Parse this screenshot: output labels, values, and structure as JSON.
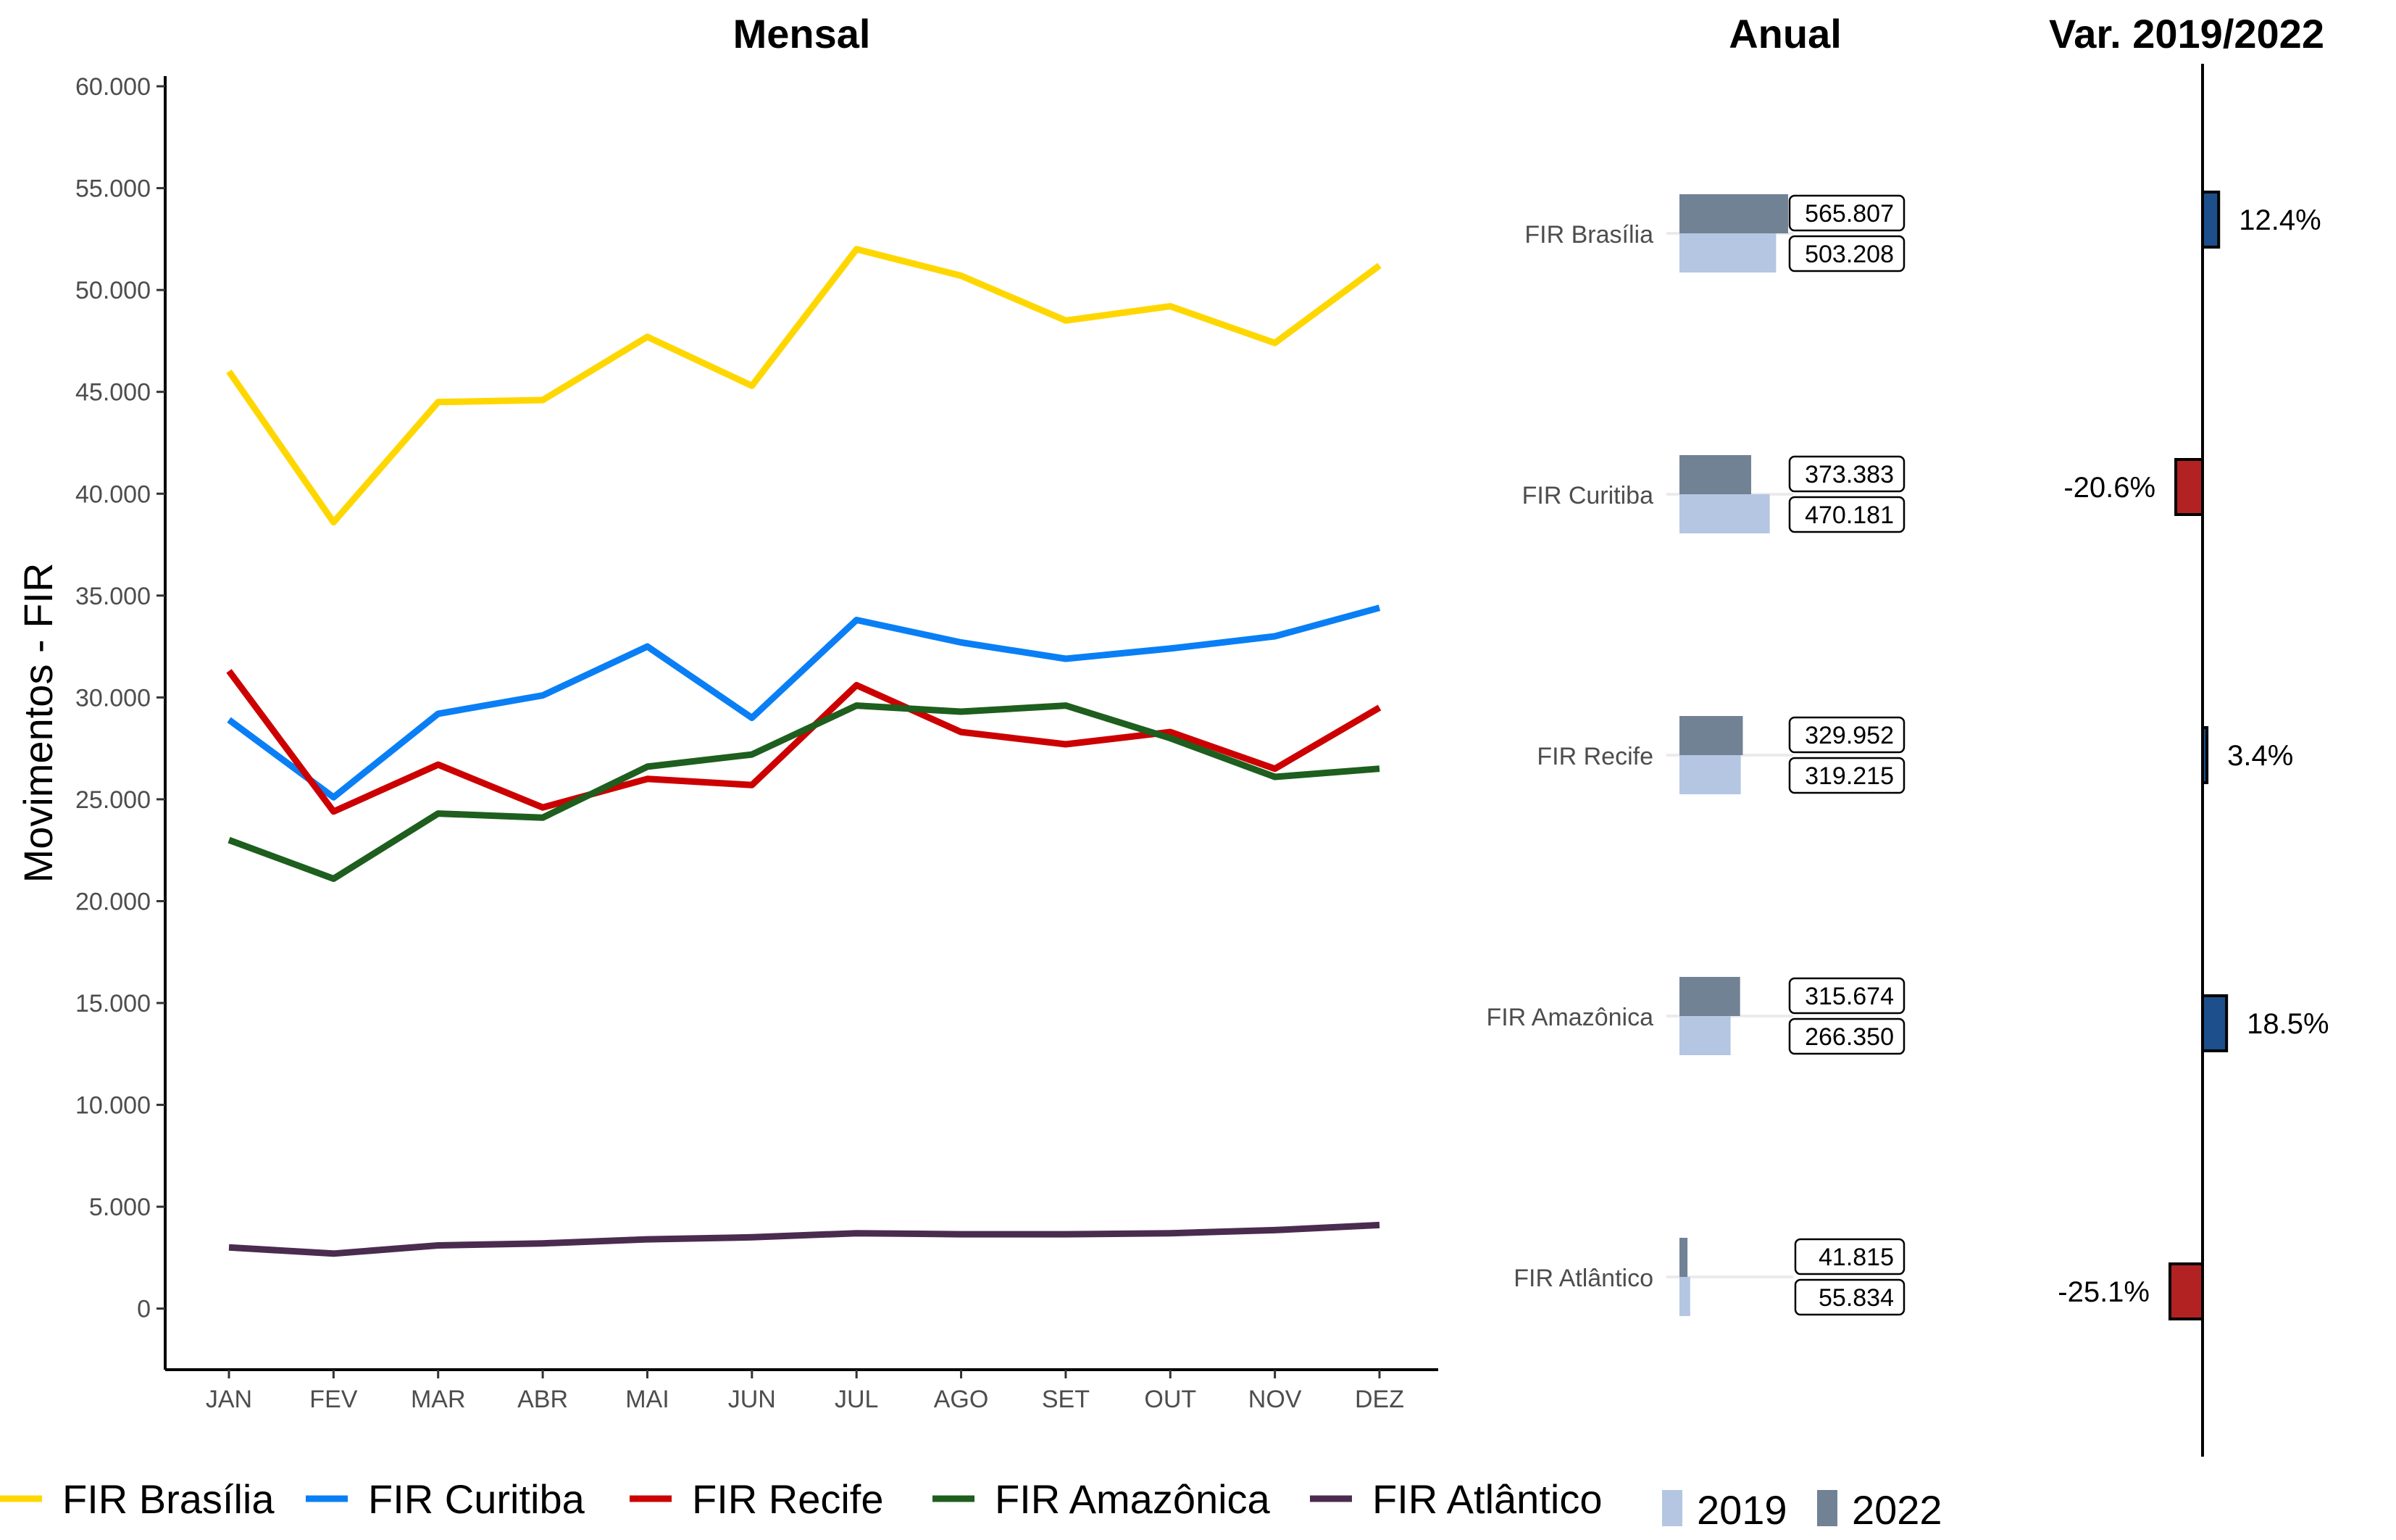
{
  "colors": {
    "FIR Brasília": "#FFD700",
    "FIR Curitiba": "#0A7FF5",
    "FIR Recife": "#CC0000",
    "FIR Amazônica": "#1E5E1E",
    "FIR Atlântico": "#4A2C4F",
    "bar_2019": "#B4C6E2",
    "bar_2022": "#718295",
    "positive_var": "#1C4F8C",
    "negative_var": "#B22222"
  },
  "chart_data": [
    {
      "type": "line",
      "title": "Mensal",
      "ylabel": "Movimentos - FIR",
      "xlabel": "",
      "categories": [
        "JAN",
        "FEV",
        "MAR",
        "ABR",
        "MAI",
        "JUN",
        "JUL",
        "AGO",
        "SET",
        "OUT",
        "NOV",
        "DEZ"
      ],
      "ylim": [
        -3000,
        60500
      ],
      "yticks": [
        0,
        5000,
        10000,
        15000,
        20000,
        25000,
        30000,
        35000,
        40000,
        45000,
        50000,
        55000,
        60000
      ],
      "ytick_labels": [
        "0",
        "5.000",
        "10.000",
        "15.000",
        "20.000",
        "25.000",
        "30.000",
        "35.000",
        "40.000",
        "45.000",
        "50.000",
        "55.000",
        "60.000"
      ],
      "grid": false,
      "legend": "bottom",
      "series": [
        {
          "name": "FIR Brasília",
          "values": [
            46000,
            38600,
            44500,
            44600,
            47700,
            45300,
            52000,
            50700,
            48500,
            49200,
            47400,
            51200
          ]
        },
        {
          "name": "FIR Curitiba",
          "values": [
            28900,
            25100,
            29200,
            30100,
            32500,
            29000,
            33800,
            32700,
            31900,
            32400,
            33000,
            34400
          ]
        },
        {
          "name": "FIR Recife",
          "values": [
            31300,
            24400,
            26700,
            24600,
            26000,
            25700,
            30600,
            28300,
            27700,
            28300,
            26500,
            29500
          ]
        },
        {
          "name": "FIR Amazônica",
          "values": [
            23000,
            21100,
            24300,
            24100,
            26600,
            27200,
            29600,
            29300,
            29600,
            28000,
            26100,
            26500
          ]
        },
        {
          "name": "FIR Atlântico",
          "values": [
            3000,
            2700,
            3100,
            3200,
            3400,
            3500,
            3700,
            3650,
            3650,
            3700,
            3850,
            4100
          ]
        }
      ]
    },
    {
      "type": "bar",
      "orientation": "horizontal",
      "title": "Anual",
      "categories": [
        "FIR Brasília",
        "FIR Curitiba",
        "FIR Recife",
        "FIR Amazônica",
        "FIR Atlântico"
      ],
      "series": [
        {
          "name": "2022",
          "values": [
            565807,
            373383,
            329952,
            315674,
            41815
          ],
          "labels": [
            "565.807",
            "373.383",
            "329.952",
            "315.674",
            "41.815"
          ]
        },
        {
          "name": "2019",
          "values": [
            503208,
            470181,
            319215,
            266350,
            55834
          ],
          "labels": [
            "503.208",
            "470.181",
            "319.215",
            "266.350",
            "55.834"
          ]
        }
      ],
      "legend": "bottom"
    },
    {
      "type": "bar",
      "orientation": "horizontal",
      "title": "Var. 2019/2022",
      "categories": [
        "FIR Brasília",
        "FIR Curitiba",
        "FIR Recife",
        "FIR Amazônica",
        "FIR Atlântico"
      ],
      "values": [
        12.4,
        -20.6,
        3.4,
        18.5,
        -25.1
      ],
      "labels": [
        "12.4%",
        "-20.6%",
        "3.4%",
        "18.5%",
        "-25.1%"
      ]
    }
  ],
  "legend": {
    "lines": [
      "FIR Brasília",
      "FIR Curitiba",
      "FIR Recife",
      "FIR Amazônica",
      "FIR Atlântico"
    ],
    "bars": [
      "2019",
      "2022"
    ]
  }
}
